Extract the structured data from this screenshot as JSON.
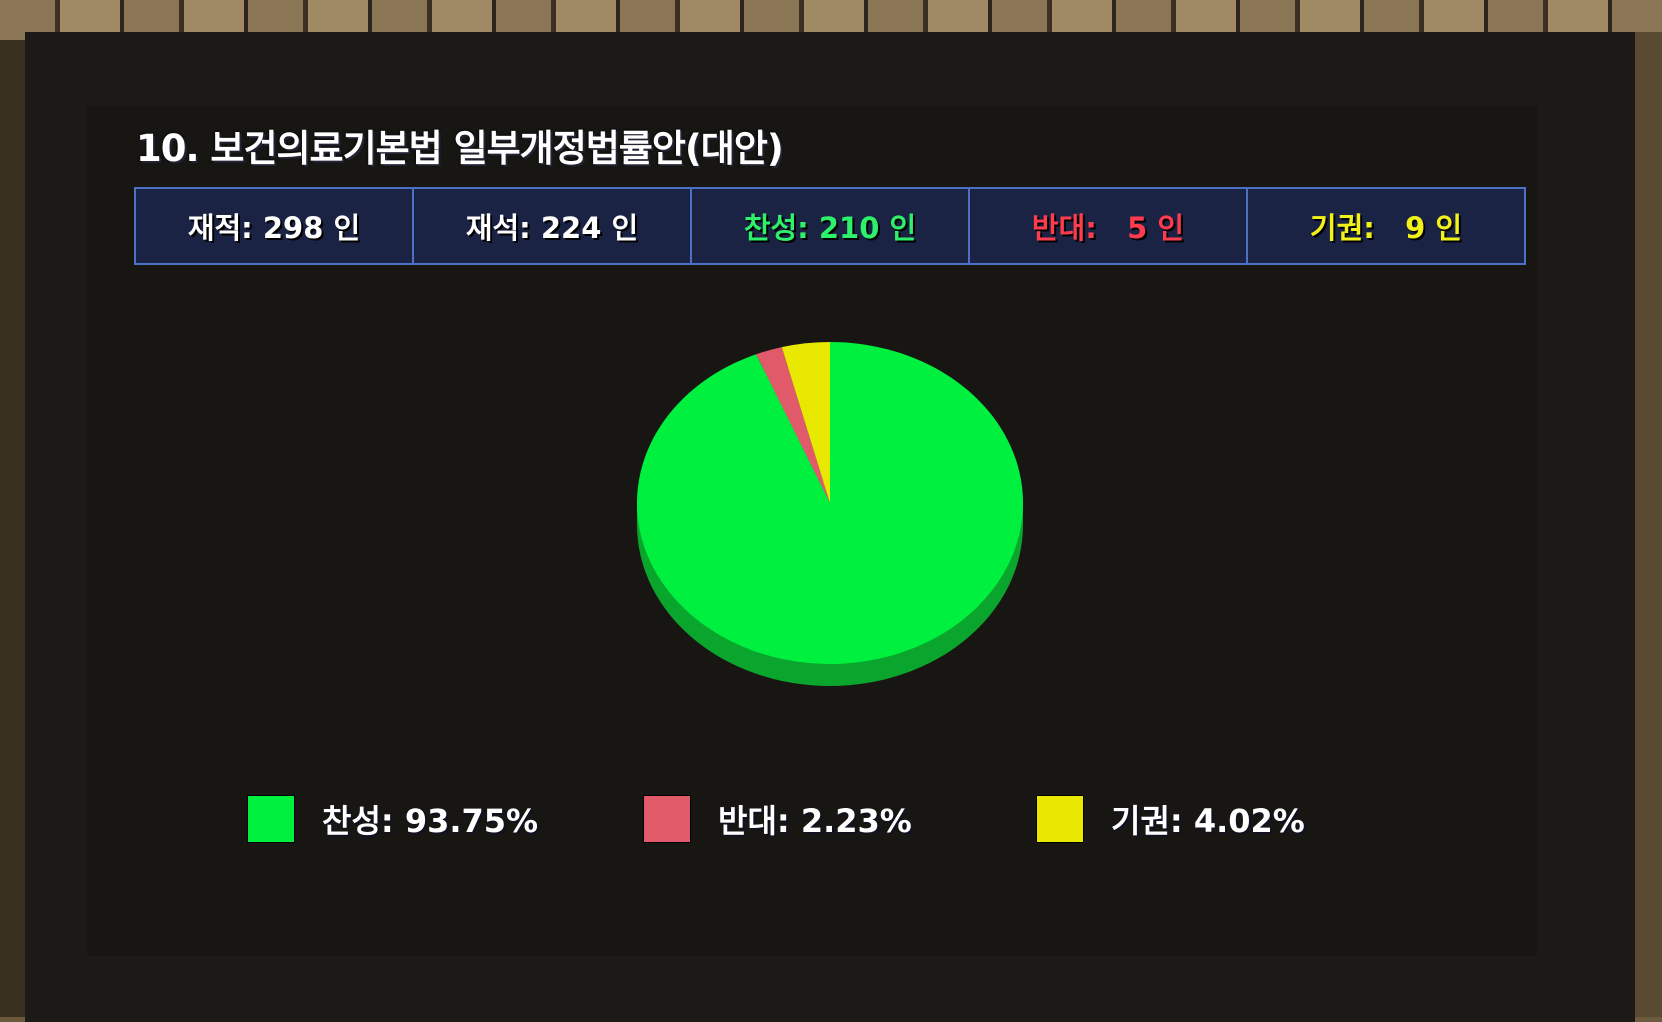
{
  "title": "10. 보건의료기본법 일부개정법률안(대안)",
  "stats": [
    {
      "label": "재적: 298 인",
      "color": "#ffffff"
    },
    {
      "label": "재석: 224 인",
      "color": "#ffffff"
    },
    {
      "label": "찬성: 210 인",
      "color": "#2ef06a"
    },
    {
      "label": "반대:   5 인",
      "color": "#ff3b4f"
    },
    {
      "label": "기권:   9 인",
      "color": "#f2f21a"
    }
  ],
  "chart_data": {
    "type": "pie",
    "slices": [
      {
        "name": "찬성",
        "value": 93.75,
        "color": "#00f040"
      },
      {
        "name": "반대",
        "value": 2.23,
        "color": "#e05a6a"
      },
      {
        "name": "기권",
        "value": 4.02,
        "color": "#e8e800"
      }
    ],
    "start": "top",
    "direction": "clockwise",
    "style": "3d"
  },
  "legend": [
    {
      "label": "찬성: 93.75%",
      "color": "#00f040"
    },
    {
      "label": "반대: 2.23%",
      "color": "#e05a6a"
    },
    {
      "label": "기권: 4.02%",
      "color": "#e8e800"
    }
  ]
}
